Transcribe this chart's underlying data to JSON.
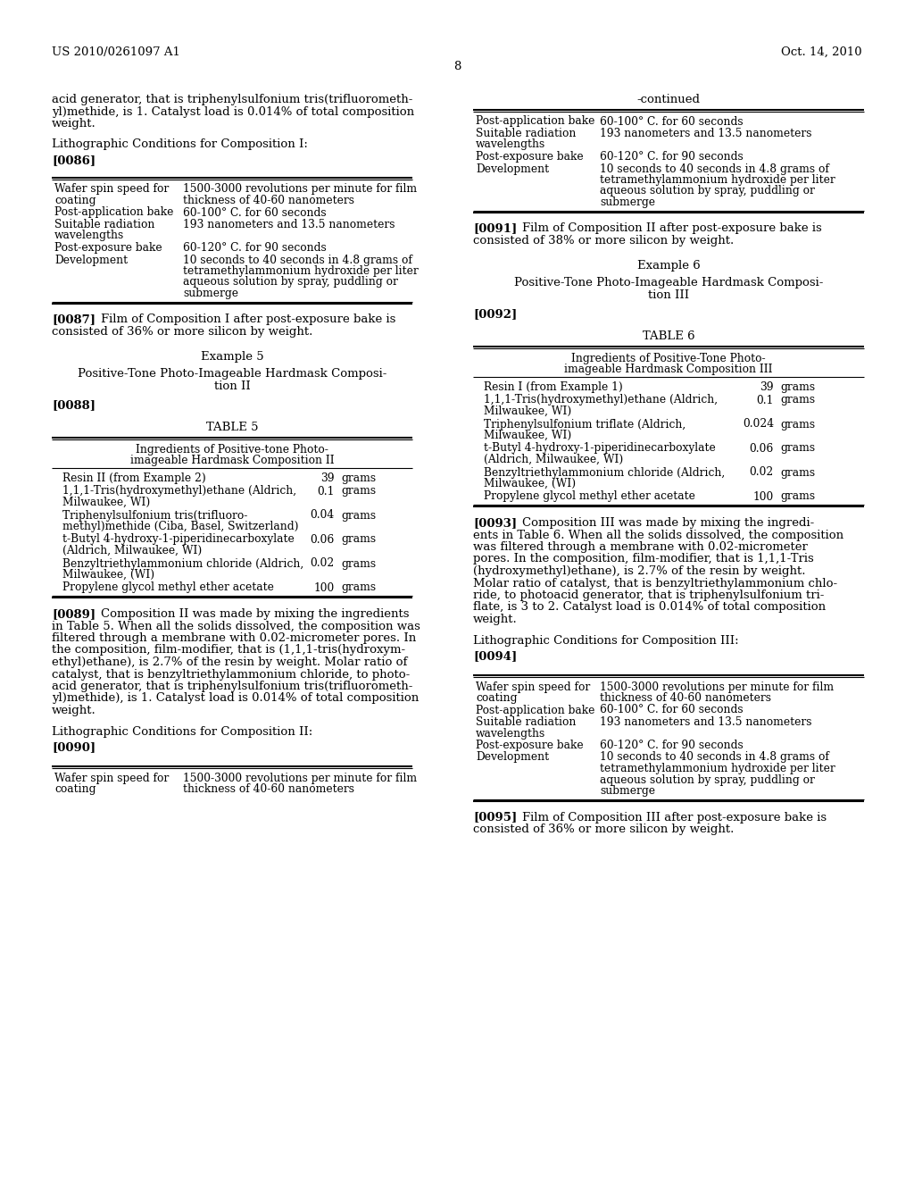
{
  "bg_color": "#ffffff",
  "header_left": "US 2010/0261097 A1",
  "header_right": "Oct. 14, 2010",
  "page_num": "8",
  "left_column": {
    "intro_text": [
      "acid generator, that is triphenylsulfonium tris(trifluorometh-",
      "yl)methide, is 1. Catalyst load is 0.014% of total composition",
      "weight."
    ],
    "litho_heading": "Lithographic Conditions for Composition I:",
    "para_0086": "[0086]",
    "table1_rows": [
      [
        "Wafer spin speed for\ncoating",
        "1500-3000 revolutions per minute for film\nthickness of 40-60 nanometers"
      ],
      [
        "Post-application bake",
        "60-100° C. for 60 seconds"
      ],
      [
        "Suitable radiation\nwavelengths",
        "193 nanometers and 13.5 nanometers"
      ],
      [
        "Post-exposure bake",
        "60-120° C. for 90 seconds"
      ],
      [
        "Development",
        "10 seconds to 40 seconds in 4.8 grams of\ntetramethylammonium hydroxide per liter\naqueous solution by spray, puddling or\nsubmerge"
      ]
    ],
    "para_0087_bold": "[0087]",
    "para_0087_text": "    Film of Composition I after post-exposure bake is\nconsisted of 36% or more silicon by weight.",
    "example5_heading": "Example 5",
    "comp2_heading_line1": "Positive-Tone Photo-Imageable Hardmask Composi-",
    "comp2_heading_line2": "tion II",
    "para_0088": "[0088]",
    "table5_title": "TABLE 5",
    "table5_subtitle_line1": "Ingredients of Positive-tone Photo-",
    "table5_subtitle_line2": "imageable Hardmask Composition II",
    "table5_rows": [
      [
        "Resin II (from Example 2)",
        "39",
        "grams"
      ],
      [
        "1,1,1-Tris(hydroxymethyl)ethane (Aldrich,\nMilwaukee, WI)",
        "0.1",
        "grams"
      ],
      [
        "Triphenylsulfonium tris(trifluoro-\nmethyl)methide (Ciba, Basel, Switzerland)",
        "0.04",
        "grams"
      ],
      [
        "t-Butyl 4-hydroxy-1-piperidinecarboxylate\n(Aldrich, Milwaukee, WI)",
        "0.06",
        "grams"
      ],
      [
        "Benzyltriethylammonium chloride (Aldrich,\nMilwaukee, (WI)",
        "0.02",
        "grams"
      ],
      [
        "Propylene glycol methyl ether acetate",
        "100",
        "grams"
      ]
    ],
    "para_0089_bold": "[0089]",
    "para_0089_lines": [
      "    Composition II was made by mixing the ingredients",
      "in Table 5. When all the solids dissolved, the composition was",
      "filtered through a membrane with 0.02-micrometer pores. In",
      "the composition, film-modifier, that is (1,1,1-tris(hydroxym-",
      "ethyl)ethane), is 2.7% of the resin by weight. Molar ratio of",
      "catalyst, that is benzyltriethylammonium chloride, to photo-",
      "acid generator, that is triphenylsulfonium tris(trifluorometh-",
      "yl)methide), is 1. Catalyst load is 0.014% of total composition",
      "weight."
    ],
    "litho2_heading": "Lithographic Conditions for Composition II:",
    "para_0090": "[0090]",
    "table2_partial_rows": [
      [
        "Wafer spin speed for\ncoating",
        "1500-3000 revolutions per minute for film\nthickness of 40-60 nanometers"
      ]
    ]
  },
  "right_column": {
    "continued_label": "-continued",
    "table_cont_rows": [
      [
        "Post-application bake",
        "60-100° C. for 60 seconds"
      ],
      [
        "Suitable radiation\nwavelengths",
        "193 nanometers and 13.5 nanometers"
      ],
      [
        "Post-exposure bake",
        "60-120° C. for 90 seconds"
      ],
      [
        "Development",
        "10 seconds to 40 seconds in 4.8 grams of\ntetramethylammonium hydroxide per liter\naqueous solution by spray, puddling or\nsubmerge"
      ]
    ],
    "para_0091_bold": "[0091]",
    "para_0091_text": "    Film of Composition II after post-exposure bake is\nconsisted of 38% or more silicon by weight.",
    "example6_heading": "Example 6",
    "comp3_heading_line1": "Positive-Tone Photo-Imageable Hardmask Composi-",
    "comp3_heading_line2": "tion III",
    "para_0092": "[0092]",
    "table6_title": "TABLE 6",
    "table6_subtitle_line1": "Ingredients of Positive-Tone Photo-",
    "table6_subtitle_line2": "imageable Hardmask Composition III",
    "table6_rows": [
      [
        "Resin I (from Example 1)",
        "39",
        "grams"
      ],
      [
        "1,1,1-Tris(hydroxymethyl)ethane (Aldrich,\nMilwaukee, WI)",
        "0.1",
        "grams"
      ],
      [
        "Triphenylsulfonium triflate (Aldrich,\nMilwaukee, WI)",
        "0.024",
        "grams"
      ],
      [
        "t-Butyl 4-hydroxy-1-piperidinecarboxylate\n(Aldrich, Milwaukee, WI)",
        "0.06",
        "grams"
      ],
      [
        "Benzyltriethylammonium chloride (Aldrich,\nMilwaukee, (WI)",
        "0.02",
        "grams"
      ],
      [
        "Propylene glycol methyl ether acetate",
        "100",
        "grams"
      ]
    ],
    "para_0093_bold": "[0093]",
    "para_0093_lines": [
      "    Composition III was made by mixing the ingredi-",
      "ents in Table 6. When all the solids dissolved, the composition",
      "was filtered through a membrane with 0.02-micrometer",
      "pores. In the composition, film-modifier, that is 1,1,1-Tris",
      "(hydroxymethyl)ethane), is 2.7% of the resin by weight.",
      "Molar ratio of catalyst, that is benzyltriethylammonium chlo-",
      "ride, to photoacid generator, that is triphenylsulfonium tri-",
      "flate, is 3 to 2. Catalyst load is 0.014% of total composition",
      "weight."
    ],
    "litho3_heading": "Lithographic Conditions for Composition III:",
    "para_0094": "[0094]",
    "table3_rows": [
      [
        "Wafer spin speed for\ncoating",
        "1500-3000 revolutions per minute for film\nthickness of 40-60 nanometers"
      ],
      [
        "Post-application bake",
        "60-100° C. for 60 seconds"
      ],
      [
        "Suitable radiation\nwavelengths",
        "193 nanometers and 13.5 nanometers"
      ],
      [
        "Post-exposure bake",
        "60-120° C. for 90 seconds"
      ],
      [
        "Development",
        "10 seconds to 40 seconds in 4.8 grams of\ntetramethylammonium hydroxide per liter\naqueous solution by spray, puddling or\nsubmerge"
      ]
    ],
    "para_0095_bold": "[0095]",
    "para_0095_text": "    Film of Composition III after post-exposure bake is\nconsisted of 36% or more silicon by weight."
  }
}
